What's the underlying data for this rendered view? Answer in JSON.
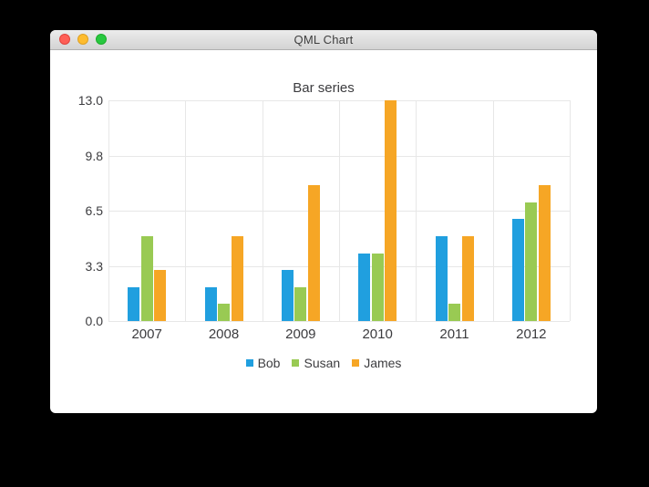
{
  "window": {
    "title": "QML Chart",
    "traffic_lights": {
      "close_color": "#ff5f57",
      "minimize_color": "#febc2e",
      "zoom_color": "#28c840"
    }
  },
  "chart_data": {
    "type": "bar",
    "title": "Bar series",
    "categories": [
      "2007",
      "2008",
      "2009",
      "2010",
      "2011",
      "2012"
    ],
    "series": [
      {
        "name": "Bob",
        "color": "#209fdf",
        "values": [
          2,
          2,
          3,
          4,
          5,
          6
        ]
      },
      {
        "name": "Susan",
        "color": "#99ca53",
        "values": [
          5,
          1,
          2,
          4,
          1,
          7
        ]
      },
      {
        "name": "James",
        "color": "#f6a625",
        "values": [
          3,
          5,
          8,
          13,
          5,
          8
        ]
      }
    ],
    "xlabel": "",
    "ylabel": "",
    "ylim": [
      0,
      13
    ],
    "y_ticks": [
      {
        "label": "0.0",
        "value": 0
      },
      {
        "label": "3.3",
        "value": 3.25
      },
      {
        "label": "6.5",
        "value": 6.5
      },
      {
        "label": "9.8",
        "value": 9.75
      },
      {
        "label": "13.0",
        "value": 13
      }
    ],
    "grid": true,
    "legend_position": "bottom",
    "grid_color": "#e7e7e7",
    "label_color": "#3c3c3f"
  }
}
